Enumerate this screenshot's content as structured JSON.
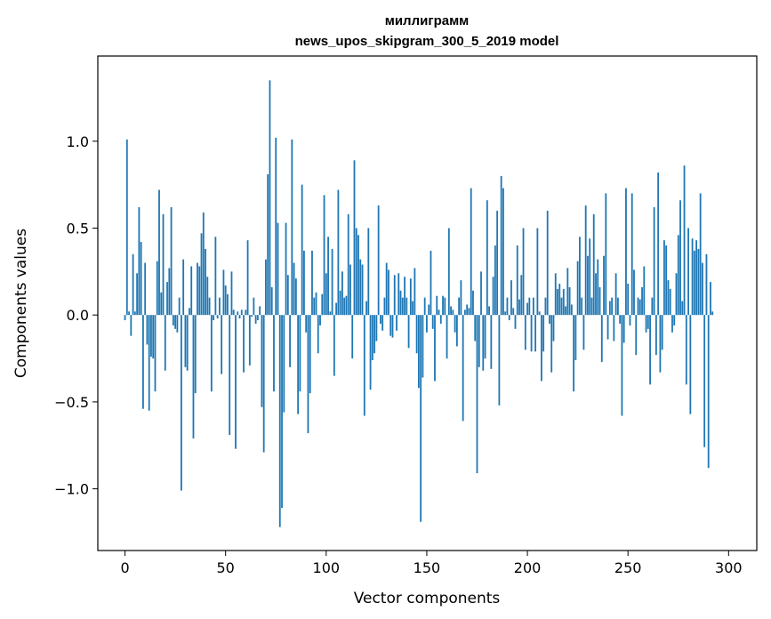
{
  "chart_data": {
    "type": "bar",
    "title_line1": "миллиграмм",
    "title_line2": "news_upos_skipgram_300_5_2019 model",
    "xlabel": "Vector components",
    "ylabel": "Components values",
    "xlim": [
      -13.5,
      314
    ],
    "ylim": [
      -1.355,
      1.49
    ],
    "xticks": [
      0,
      50,
      100,
      150,
      200,
      250,
      300
    ],
    "xtick_labels": [
      "0",
      "50",
      "100",
      "150",
      "200",
      "250",
      "300"
    ],
    "yticks": [
      -1.0,
      -0.5,
      0.0,
      0.5,
      1.0
    ],
    "ytick_labels": [
      "−1.0",
      "−0.5",
      "0.0",
      "0.5",
      "1.0"
    ],
    "bar_color": "#1f77b4",
    "bar_width": 0.8,
    "grid": false,
    "values": [
      -0.03,
      1.01,
      0.02,
      -0.12,
      0.35,
      0.02,
      0.24,
      0.62,
      0.42,
      -0.54,
      0.3,
      -0.17,
      -0.55,
      -0.24,
      -0.25,
      -0.44,
      0.31,
      0.72,
      0.13,
      0.58,
      -0.32,
      0.19,
      0.27,
      0.62,
      -0.06,
      -0.08,
      -0.1,
      0.1,
      -1.01,
      0.32,
      -0.3,
      -0.32,
      0.04,
      0.28,
      -0.71,
      -0.45,
      0.3,
      0.28,
      0.47,
      0.59,
      0.38,
      0.22,
      0.1,
      -0.44,
      -0.03,
      0.45,
      -0.02,
      0.1,
      -0.34,
      0.26,
      0.17,
      0.12,
      -0.69,
      0.25,
      0.03,
      -0.77,
      0.02,
      -0.02,
      0.03,
      -0.33,
      0.03,
      0.43,
      -0.29,
      -0.01,
      0.1,
      -0.05,
      -0.03,
      0.05,
      -0.53,
      -0.79,
      0.32,
      0.81,
      1.35,
      0.16,
      -0.44,
      1.02,
      0.53,
      -1.22,
      -1.11,
      -0.56,
      0.53,
      0.23,
      -0.3,
      1.01,
      0.3,
      0.21,
      -0.57,
      -0.44,
      0.75,
      0.37,
      -0.1,
      -0.68,
      -0.45,
      0.37,
      0.1,
      0.13,
      -0.22,
      -0.06,
      0.12,
      0.69,
      0.24,
      0.45,
      0.02,
      0.38,
      -0.35,
      0.07,
      0.72,
      0.14,
      0.25,
      0.1,
      0.11,
      0.58,
      0.29,
      -0.25,
      0.89,
      0.5,
      0.46,
      0.32,
      0.29,
      -0.58,
      0.08,
      0.5,
      -0.43,
      -0.26,
      -0.22,
      -0.15,
      0.63,
      -0.05,
      -0.09,
      0.1,
      0.3,
      0.26,
      -0.12,
      -0.13,
      0.23,
      -0.09,
      0.24,
      0.14,
      0.1,
      0.22,
      0.1,
      -0.19,
      0.21,
      0.08,
      0.27,
      -0.22,
      -0.42,
      -1.19,
      -0.36,
      0.1,
      -0.1,
      0.06,
      0.37,
      -0.08,
      -0.38,
      0.11,
      0.03,
      -0.05,
      0.11,
      0.1,
      -0.25,
      0.5,
      0.05,
      0.03,
      -0.1,
      -0.18,
      0.1,
      0.2,
      -0.61,
      0.03,
      0.06,
      0.04,
      0.73,
      0.14,
      -0.15,
      -0.91,
      -0.3,
      0.25,
      -0.32,
      -0.25,
      0.66,
      0.05,
      -0.31,
      0.22,
      0.4,
      0.6,
      -0.52,
      0.8,
      0.73,
      0.02,
      0.1,
      -0.03,
      0.2,
      0.04,
      -0.08,
      0.4,
      0.09,
      0.23,
      0.5,
      -0.2,
      0.07,
      0.1,
      -0.21,
      0.1,
      -0.21,
      0.5,
      0.02,
      -0.38,
      -0.21,
      0.1,
      0.6,
      -0.05,
      -0.33,
      -0.15,
      0.24,
      0.15,
      0.18,
      0.1,
      0.15,
      0.05,
      0.27,
      0.16,
      0.06,
      -0.44,
      -0.26,
      0.31,
      0.45,
      0.1,
      -0.2,
      0.63,
      0.34,
      0.44,
      0.1,
      0.58,
      0.24,
      0.32,
      0.16,
      -0.27,
      0.34,
      0.7,
      -0.14,
      0.08,
      0.1,
      -0.15,
      0.24,
      0.1,
      -0.05,
      -0.58,
      -0.16,
      0.73,
      0.18,
      -0.06,
      0.7,
      0.26,
      -0.23,
      0.1,
      0.09,
      0.16,
      0.28,
      -0.1,
      -0.08,
      -0.4,
      0.1,
      0.62,
      -0.23,
      0.82,
      -0.33,
      -0.2,
      0.43,
      0.4,
      0.2,
      0.15,
      -0.1,
      -0.06,
      0.24,
      0.46,
      0.66,
      0.08,
      0.86,
      -0.4,
      0.5,
      -0.57,
      0.44,
      0.37,
      0.43,
      0.38,
      0.7,
      0.3,
      -0.76,
      0.35,
      -0.88,
      0.19,
      0.02
    ],
    "value_note": ""
  }
}
